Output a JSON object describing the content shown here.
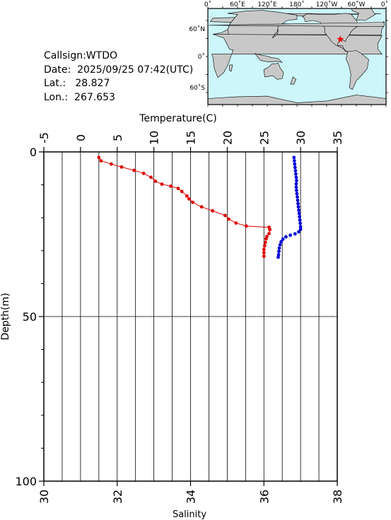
{
  "info": {
    "callsign": "Callsign:WTDO",
    "date": "Date:  2025/09/25 07:42(UTC)",
    "lat": "Lat.:   28.827",
    "lon": "Lon.:  267.653"
  },
  "map": {
    "top_labels": [
      "0˚",
      "60˚E",
      "120˚E",
      "180˚",
      "120˚W",
      "60˚W",
      "0˚"
    ],
    "left_labels": [
      "60˚N",
      "0˚",
      "60˚S"
    ],
    "ocean_color": "#cdf6fa",
    "land_color": "#c8c8c8",
    "marker_color": "#ff0000",
    "marker_icon": "star-icon",
    "station_lon_east": 267.653,
    "station_lat": 28.827
  },
  "chart_data": {
    "type": "scatter",
    "top_axis": {
      "label": "Temperature(C)",
      "range": [
        -5,
        35
      ],
      "ticks": [
        -5,
        0,
        5,
        10,
        15,
        20,
        25,
        30,
        35
      ]
    },
    "bottom_axis": {
      "label": "Salinity",
      "range": [
        30,
        38
      ],
      "ticks": [
        30,
        32,
        34,
        36,
        38
      ]
    },
    "y_axis": {
      "label": "Depth(m)",
      "range": [
        0,
        100
      ],
      "ticks": [
        0,
        50,
        100
      ],
      "inverted": true
    },
    "grid": true,
    "series": [
      {
        "key": "temperature",
        "axis": "top",
        "color": "#e00000",
        "line": true,
        "points": [
          [
            2.5,
            1.7
          ],
          [
            2.8,
            2.7
          ],
          [
            4.2,
            3.7
          ],
          [
            5.6,
            4.6
          ],
          [
            7.3,
            5.6
          ],
          [
            8.6,
            6.5
          ],
          [
            9.6,
            7.7
          ],
          [
            10.2,
            8.9
          ],
          [
            11.1,
            9.8
          ],
          [
            12.3,
            10.4
          ],
          [
            13.3,
            11.1
          ],
          [
            13.8,
            12.0
          ],
          [
            14.5,
            13.4
          ],
          [
            14.8,
            14.3
          ],
          [
            15.3,
            15.3
          ],
          [
            16.5,
            16.7
          ],
          [
            18.0,
            17.9
          ],
          [
            19.7,
            19.3
          ],
          [
            20.2,
            20.4
          ],
          [
            21.2,
            21.6
          ],
          [
            22.6,
            22.5
          ],
          [
            25.7,
            22.9
          ],
          [
            25.8,
            23.6
          ],
          [
            25.7,
            24.8
          ],
          [
            25.4,
            25.7
          ],
          [
            25.3,
            26.4
          ],
          [
            25.2,
            27.5
          ],
          [
            25.1,
            28.5
          ],
          [
            25.0,
            29.6
          ],
          [
            25.0,
            30.6
          ],
          [
            25.0,
            31.7
          ]
        ]
      },
      {
        "key": "salinity",
        "axis": "bottom",
        "color": "#0000d8",
        "line": false,
        "points": [
          [
            36.82,
            1.7
          ],
          [
            36.83,
            2.7
          ],
          [
            36.84,
            3.7
          ],
          [
            36.85,
            4.7
          ],
          [
            36.86,
            5.7
          ],
          [
            36.87,
            6.7
          ],
          [
            36.88,
            7.7
          ],
          [
            36.89,
            8.7
          ],
          [
            36.88,
            9.7
          ],
          [
            36.88,
            10.7
          ],
          [
            36.89,
            11.7
          ],
          [
            36.9,
            12.7
          ],
          [
            36.91,
            13.7
          ],
          [
            36.92,
            14.7
          ],
          [
            36.93,
            15.7
          ],
          [
            36.94,
            16.7
          ],
          [
            36.95,
            17.7
          ],
          [
            36.96,
            18.7
          ],
          [
            36.97,
            19.7
          ],
          [
            36.98,
            20.7
          ],
          [
            36.99,
            21.7
          ],
          [
            37.0,
            22.7
          ],
          [
            37.0,
            23.5
          ],
          [
            36.95,
            24.3
          ],
          [
            36.85,
            24.9
          ],
          [
            36.72,
            25.3
          ],
          [
            36.6,
            25.8
          ],
          [
            36.52,
            26.5
          ],
          [
            36.47,
            27.3
          ],
          [
            36.44,
            28.2
          ],
          [
            36.42,
            29.2
          ],
          [
            36.41,
            30.2
          ],
          [
            36.4,
            31.2
          ],
          [
            36.39,
            32.0
          ]
        ]
      }
    ]
  }
}
